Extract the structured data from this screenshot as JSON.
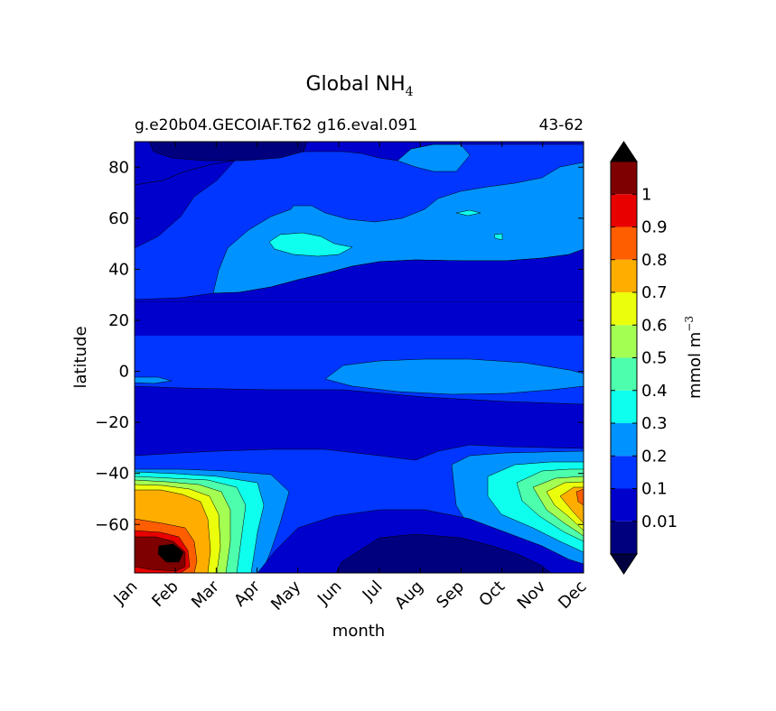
{
  "chart_data": {
    "type": "heatmap",
    "title": "Global NH",
    "title_subscript": "4",
    "subtitle_left": "g.e20b04.GECOIAF.T62 g16.eval.091",
    "subtitle_right": "43-62",
    "xlabel": "month",
    "ylabel": "latitude",
    "x_categories": [
      "Jan",
      "Feb",
      "Mar",
      "Apr",
      "May",
      "Jun",
      "Jul",
      "Aug",
      "Sep",
      "Oct",
      "Nov",
      "Dec"
    ],
    "y_ticks": [
      "80",
      "60",
      "40",
      "20",
      "0",
      "−20",
      "−40",
      "−60"
    ],
    "y_tick_values": [
      80,
      60,
      40,
      20,
      0,
      -20,
      -40,
      -60
    ],
    "ylim": [
      -79,
      90
    ],
    "colorbar": {
      "label": "mmol m",
      "label_superscript": "−3",
      "levels": [
        0.01,
        0.1,
        0.2,
        0.3,
        0.4,
        0.5,
        0.6,
        0.7,
        0.8,
        0.9,
        1
      ],
      "tick_labels": [
        "0.01",
        "0.1",
        "0.2",
        "0.3",
        "0.4",
        "0.5",
        "0.6",
        "0.7",
        "0.8",
        "0.9",
        "1"
      ],
      "colors": [
        "#00007f",
        "#0000cd",
        "#0036ff",
        "#0093ff",
        "#0fffee",
        "#4dffad",
        "#a4ff53",
        "#ebff0c",
        "#ffae00",
        "#ff5e00",
        "#e80000",
        "#7f0000"
      ],
      "extend_min_color": "#000040",
      "extend_max_color": "#000000"
    },
    "grid": false
  }
}
